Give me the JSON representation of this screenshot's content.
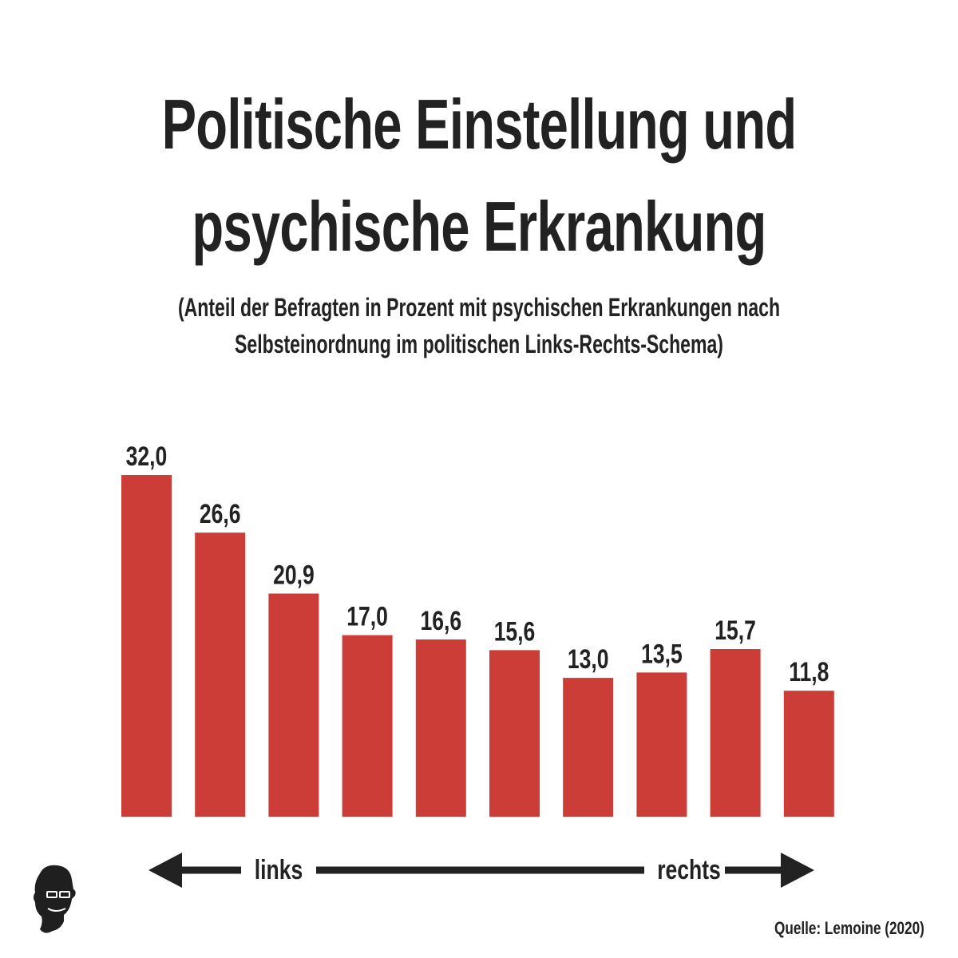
{
  "title": {
    "line1": "Politische Einstellung und",
    "line2": "psychische Erkrankung"
  },
  "subtitle": {
    "line1": "(Anteil der Befragten in Prozent mit psychischen Erkrankungen nach",
    "line2": "Selbsteinordnung im politischen Links-Rechts-Schema)"
  },
  "chart_data": {
    "type": "bar",
    "title": "Politische Einstellung und psychische Erkrankung",
    "subtitle": "(Anteil der Befragten in Prozent mit psychischen Erkrankungen nach Selbsteinordnung im politischen Links-Rechts-Schema)",
    "values": [
      32.0,
      26.6,
      20.9,
      17.0,
      16.6,
      15.6,
      13.0,
      13.5,
      15.7,
      11.8
    ],
    "value_labels": [
      "32,0",
      "26,6",
      "20,9",
      "17,0",
      "16,6",
      "15,6",
      "13,0",
      "13,5",
      "15,7",
      "11,8"
    ],
    "ylim": [
      0,
      32
    ],
    "grid": false,
    "legend": "none",
    "bar_color": "#cc3d37",
    "axis": {
      "left_label": "links",
      "right_label": "rechts"
    }
  },
  "source": "Quelle: Lemoine (2020)",
  "colors": {
    "bar": "#cc3d37",
    "text": "#222222",
    "background": "#ffffff"
  },
  "icons": {
    "logo": "person-with-sunglasses-silhouette-icon"
  }
}
